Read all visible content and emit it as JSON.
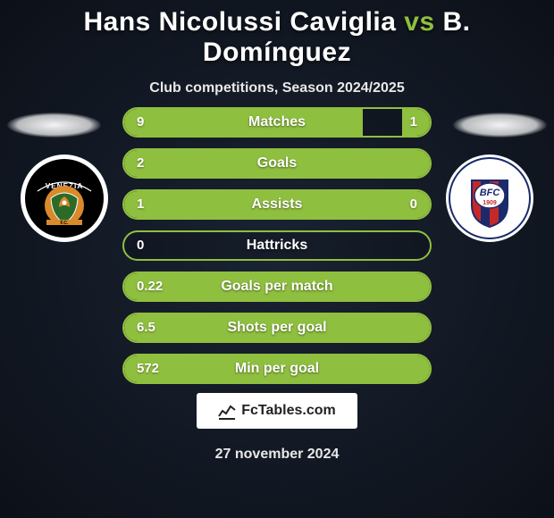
{
  "header": {
    "player1": "Hans Nicolussi Caviglia",
    "vs": "vs",
    "player2": "B. Domínguez",
    "title_color": "#ffffff",
    "accent_color": "#8fbf3f",
    "subtitle": "Club competitions, Season 2024/2025"
  },
  "teams": {
    "left": {
      "name": "Venezia",
      "badge_outer": "#ffffff",
      "badge_inner": "#000000",
      "badge_accent": "#d98a2a",
      "badge_green": "#2a6b2a"
    },
    "right": {
      "name": "Bologna",
      "badge_outer": "#ffffff",
      "badge_stripe1": "#c62828",
      "badge_stripe2": "#1a2a6b",
      "badge_text": "BFC",
      "badge_year": "1909"
    }
  },
  "stats": {
    "bar_border": "#8fbf3f",
    "bar_fill": "#8fbf3f",
    "rows": [
      {
        "label": "Matches",
        "left": "9",
        "right": "1",
        "left_pct": 78,
        "right_pct": 9
      },
      {
        "label": "Goals",
        "left": "2",
        "right": "",
        "left_pct": 100,
        "right_pct": 0
      },
      {
        "label": "Assists",
        "left": "1",
        "right": "0",
        "left_pct": 100,
        "right_pct": 0
      },
      {
        "label": "Hattricks",
        "left": "0",
        "right": "",
        "left_pct": 0,
        "right_pct": 0
      },
      {
        "label": "Goals per match",
        "left": "0.22",
        "right": "",
        "left_pct": 100,
        "right_pct": 0
      },
      {
        "label": "Shots per goal",
        "left": "6.5",
        "right": "",
        "left_pct": 100,
        "right_pct": 0
      },
      {
        "label": "Min per goal",
        "left": "572",
        "right": "",
        "left_pct": 100,
        "right_pct": 0
      }
    ]
  },
  "brand": {
    "text": "FcTables.com",
    "bg": "#ffffff",
    "color": "#222222"
  },
  "footer": {
    "date": "27 november 2024"
  }
}
